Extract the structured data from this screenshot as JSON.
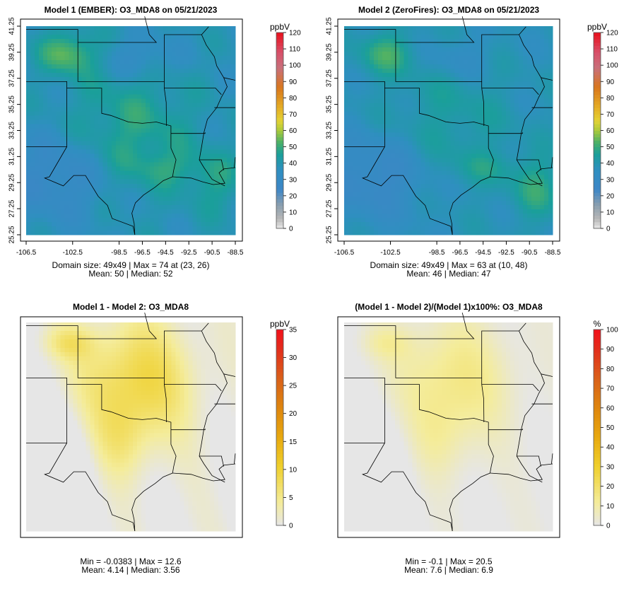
{
  "chart_data": [
    {
      "type": "heatmap",
      "title": "Model 1 (EMBER): O3_MDA8 on 05/21/2023",
      "grid_size": [
        49,
        49
      ],
      "x_ticks": [
        "-106.5",
        "-102.5",
        "-98.5",
        "-96.5",
        "-94.5",
        "-92.5",
        "-90.5",
        "-88.5"
      ],
      "y_ticks": [
        "25.25",
        "27.25",
        "29.25",
        "31.25",
        "33.25",
        "35.25",
        "37.25",
        "39.25",
        "41.25"
      ],
      "colorbar": {
        "unit": "ppbV",
        "range": [
          0,
          120
        ],
        "ticks": [
          0,
          10,
          20,
          30,
          40,
          50,
          60,
          70,
          80,
          90,
          100,
          110,
          120
        ]
      },
      "stats": {
        "line1": "Domain size: 49x49 | Max = 74 at (23, 26)",
        "line2": "Mean: 50 |  Median: 52"
      },
      "summary": {
        "max": 74,
        "max_at": [
          23,
          26
        ],
        "mean": 50,
        "median": 52
      },
      "show_axes": true
    },
    {
      "type": "heatmap",
      "title": "Model 2 (ZeroFires): O3_MDA8 on 05/21/2023",
      "grid_size": [
        49,
        49
      ],
      "x_ticks": [
        "-106.5",
        "-102.5",
        "-98.5",
        "-96.5",
        "-94.5",
        "-92.5",
        "-90.5",
        "-88.5"
      ],
      "y_ticks": [
        "25.25",
        "27.25",
        "29.25",
        "31.25",
        "33.25",
        "35.25",
        "37.25",
        "39.25",
        "41.25"
      ],
      "colorbar": {
        "unit": "ppbV",
        "range": [
          0,
          120
        ],
        "ticks": [
          0,
          10,
          20,
          30,
          40,
          50,
          60,
          70,
          80,
          90,
          100,
          110,
          120
        ]
      },
      "stats": {
        "line1": "Domain size: 49x49 | Max = 63 at (10, 48)",
        "line2": "Mean: 46 |  Median: 47"
      },
      "summary": {
        "max": 63,
        "max_at": [
          10,
          48
        ],
        "mean": 46,
        "median": 47
      },
      "show_axes": true
    },
    {
      "type": "heatmap",
      "title": "Model 1 - Model 2: O3_MDA8",
      "grid_size": [
        49,
        49
      ],
      "colorbar": {
        "unit": "ppbV",
        "range": [
          0,
          35
        ],
        "ticks": [
          0,
          5,
          10,
          15,
          20,
          25,
          30,
          35
        ]
      },
      "stats": {
        "line1": "Min = -0.0383 | Max = 12.6",
        "line2": "Mean: 4.14 |  Median: 3.56"
      },
      "summary": {
        "min": -0.0383,
        "max": 12.6,
        "mean": 4.14,
        "median": 3.56
      },
      "show_axes": false
    },
    {
      "type": "heatmap",
      "title": "(Model 1 - Model 2)/(Model 1)x100%: O3_MDA8",
      "grid_size": [
        49,
        49
      ],
      "colorbar": {
        "unit": "%",
        "range": [
          0,
          100
        ],
        "ticks": [
          0,
          10,
          20,
          30,
          40,
          50,
          60,
          70,
          80,
          90,
          100
        ]
      },
      "stats": {
        "line1": "Min = -0.1 | Max = 20.5",
        "line2": "Mean: 7.6 |  Median: 6.9"
      },
      "summary": {
        "min": -0.1,
        "max": 20.5,
        "mean": 7.6,
        "median": 6.9
      },
      "show_axes": false
    }
  ]
}
